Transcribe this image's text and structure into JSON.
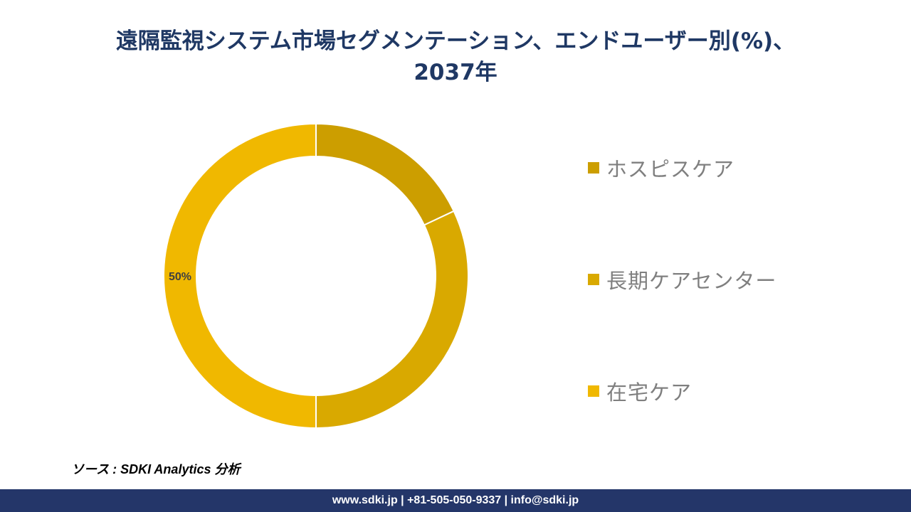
{
  "chart_data": {
    "type": "pie",
    "title": "遠隔監視システム市場セグメンテーション、エンドユーザー別(%)、2037年",
    "title_lines": [
      "遠隔監視システム市場セグメンテーション、エンドユーザー別(%)、",
      "2037年"
    ],
    "donut": true,
    "legend_position": "right",
    "categories": [
      "ホスピスケア",
      "長期ケアセンター",
      "在宅ケア"
    ],
    "values": [
      18,
      32,
      50
    ],
    "colors": [
      "#cc9e00",
      "#d9a900",
      "#f0b800"
    ],
    "data_labels": [
      "",
      "",
      "50%"
    ]
  },
  "source": "ソース : SDKI Analytics 分析",
  "footer": "www.sdki.jp | +81-505-050-9337 | info@sdki.jp"
}
